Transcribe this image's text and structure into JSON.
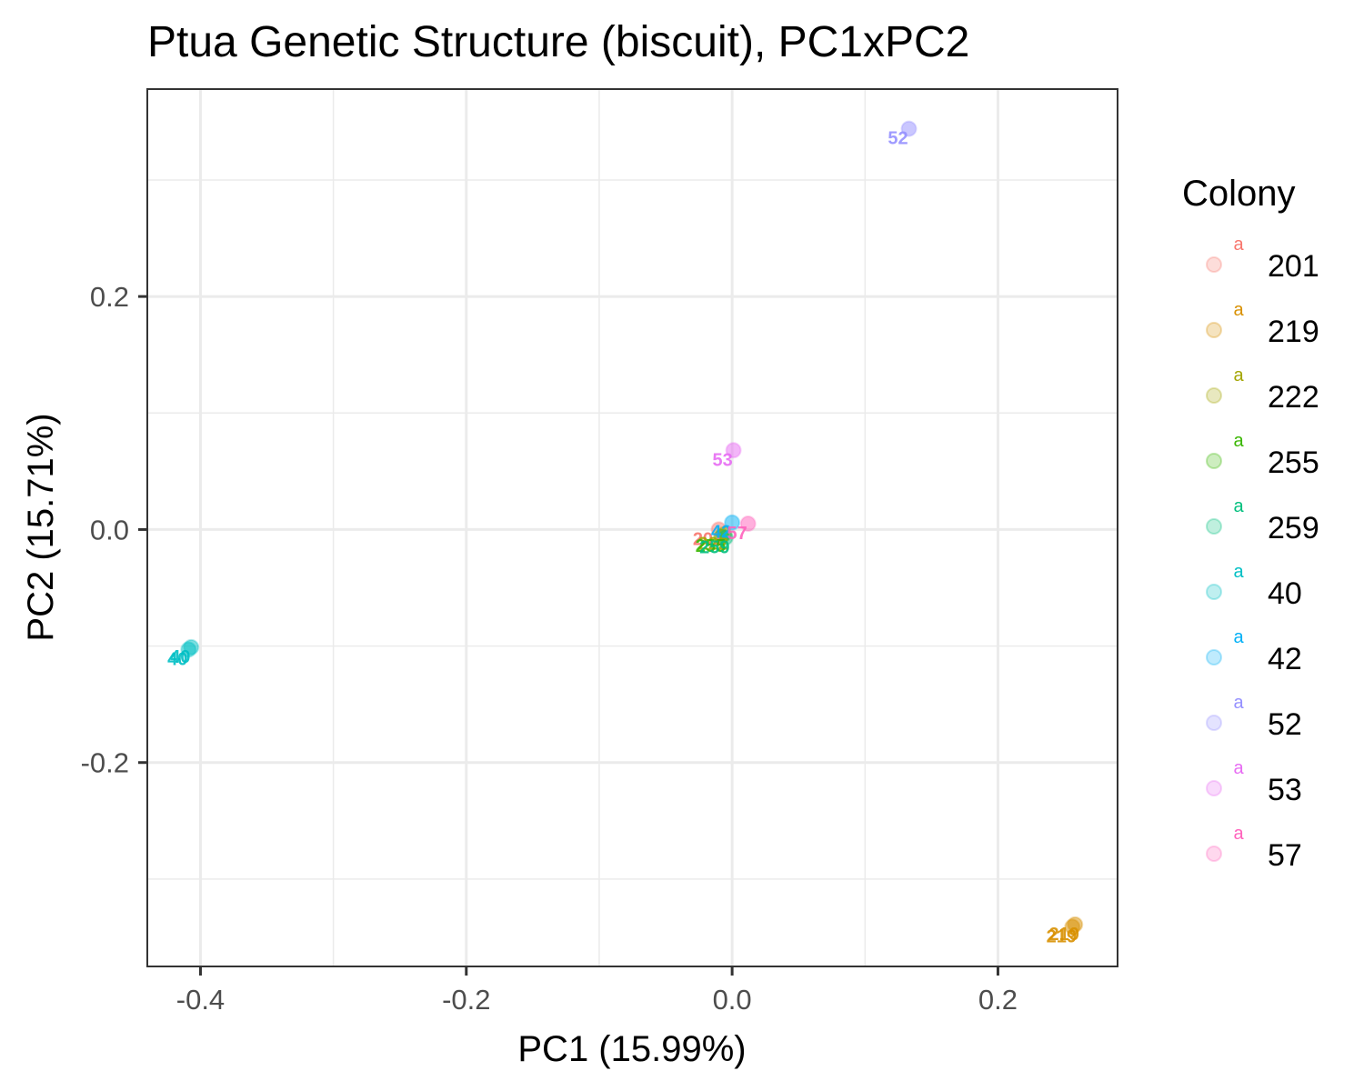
{
  "chart_data": {
    "type": "scatter",
    "title": "Ptua Genetic Structure (biscuit), PC1xPC2",
    "xlabel": "PC1 (15.99%)",
    "ylabel": "PC2 (15.71%)",
    "xlim": [
      -0.44,
      0.29
    ],
    "ylim": [
      -0.375,
      0.378
    ],
    "x_ticks": [
      -0.4,
      -0.2,
      0.0,
      0.2
    ],
    "x_tick_labels": [
      "-0.4",
      "-0.2",
      "0.0",
      "0.2"
    ],
    "y_ticks": [
      -0.2,
      0.0,
      0.2
    ],
    "y_tick_labels": [
      "-0.2",
      "0.0",
      "0.2"
    ],
    "x_minor": [
      -0.3,
      -0.1,
      0.1
    ],
    "y_minor": [
      -0.3,
      -0.1,
      0.1,
      0.3
    ],
    "grid": true,
    "legend": {
      "title": "Colony",
      "position": "right",
      "key_glyph": "a",
      "entries": [
        {
          "name": "201",
          "color": "#F8766D"
        },
        {
          "name": "219",
          "color": "#D89000"
        },
        {
          "name": "222",
          "color": "#A3A500"
        },
        {
          "name": "255",
          "color": "#39B600"
        },
        {
          "name": "259",
          "color": "#00BF7D"
        },
        {
          "name": "40",
          "color": "#00BFC4"
        },
        {
          "name": "42",
          "color": "#00B0F6"
        },
        {
          "name": "52",
          "color": "#9590FF"
        },
        {
          "name": "53",
          "color": "#E76BF3"
        },
        {
          "name": "57",
          "color": "#FF62BC"
        }
      ]
    },
    "series": [
      {
        "name": "201",
        "color": "#F8766D",
        "points": [
          {
            "x": -0.01,
            "y": 0.0
          }
        ]
      },
      {
        "name": "219",
        "color": "#D89000",
        "points": [
          {
            "x": 0.258,
            "y": -0.339
          },
          {
            "x": 0.256,
            "y": -0.341
          }
        ]
      },
      {
        "name": "222",
        "color": "#A3A500",
        "points": [
          {
            "x": -0.006,
            "y": -0.004
          }
        ]
      },
      {
        "name": "255",
        "color": "#39B600",
        "points": [
          {
            "x": -0.008,
            "y": -0.006
          }
        ]
      },
      {
        "name": "259",
        "color": "#00BF7D",
        "points": [
          {
            "x": -0.005,
            "y": -0.007
          }
        ]
      },
      {
        "name": "40",
        "color": "#00BFC4",
        "points": [
          {
            "x": -0.407,
            "y": -0.101
          },
          {
            "x": -0.409,
            "y": -0.103
          }
        ]
      },
      {
        "name": "42",
        "color": "#00B0F6",
        "points": [
          {
            "x": 0.0,
            "y": 0.006
          }
        ]
      },
      {
        "name": "52",
        "color": "#9590FF",
        "points": [
          {
            "x": 0.133,
            "y": 0.344
          }
        ]
      },
      {
        "name": "53",
        "color": "#E76BF3",
        "points": [
          {
            "x": 0.001,
            "y": 0.068
          }
        ]
      },
      {
        "name": "57",
        "color": "#FF62BC",
        "points": [
          {
            "x": 0.012,
            "y": 0.005
          }
        ]
      }
    ]
  }
}
